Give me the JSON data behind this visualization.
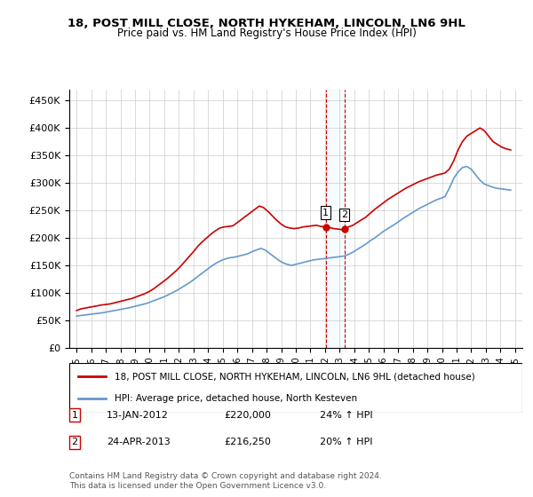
{
  "title": "18, POST MILL CLOSE, NORTH HYKEHAM, LINCOLN, LN6 9HL",
  "subtitle": "Price paid vs. HM Land Registry's House Price Index (HPI)",
  "legend_line1": "18, POST MILL CLOSE, NORTH HYKEHAM, LINCOLN, LN6 9HL (detached house)",
  "legend_line2": "HPI: Average price, detached house, North Kesteven",
  "annotation1_label": "1",
  "annotation1_date": "13-JAN-2012",
  "annotation1_price": "£220,000",
  "annotation1_hpi": "24% ↑ HPI",
  "annotation2_label": "2",
  "annotation2_date": "24-APR-2013",
  "annotation2_price": "£216,250",
  "annotation2_hpi": "20% ↑ HPI",
  "footer": "Contains HM Land Registry data © Crown copyright and database right 2024.\nThis data is licensed under the Open Government Licence v3.0.",
  "red_color": "#cc0000",
  "blue_color": "#6699cc",
  "vline_color": "#cc0000",
  "vline_x1": 2012.04,
  "vline_x2": 2013.32,
  "ylim": [
    0,
    470000
  ],
  "xlim_start": 1994.5,
  "xlim_end": 2025.5,
  "yticks": [
    0,
    50000,
    100000,
    150000,
    200000,
    250000,
    300000,
    350000,
    400000,
    450000
  ],
  "ytick_labels": [
    "£0",
    "£50K",
    "£100K",
    "£150K",
    "£200K",
    "£250K",
    "£300K",
    "£350K",
    "£400K",
    "£450K"
  ],
  "xticks": [
    1995,
    1996,
    1997,
    1998,
    1999,
    2000,
    2001,
    2002,
    2003,
    2004,
    2005,
    2006,
    2007,
    2008,
    2009,
    2010,
    2011,
    2012,
    2013,
    2014,
    2015,
    2016,
    2017,
    2018,
    2019,
    2020,
    2021,
    2022,
    2023,
    2024,
    2025
  ],
  "red_x": [
    1995.0,
    1995.1,
    1995.2,
    1995.3,
    1995.5,
    1995.7,
    1995.9,
    1996.1,
    1996.3,
    1996.5,
    1996.7,
    1997.0,
    1997.3,
    1997.6,
    1997.9,
    1998.2,
    1998.5,
    1998.8,
    1999.1,
    1999.4,
    1999.7,
    2000.0,
    2000.3,
    2000.6,
    2000.9,
    2001.2,
    2001.5,
    2001.8,
    2002.1,
    2002.4,
    2002.7,
    2003.0,
    2003.3,
    2003.6,
    2003.9,
    2004.2,
    2004.5,
    2004.8,
    2005.1,
    2005.4,
    2005.7,
    2006.0,
    2006.3,
    2006.6,
    2006.9,
    2007.2,
    2007.5,
    2007.8,
    2008.1,
    2008.4,
    2008.7,
    2009.0,
    2009.3,
    2009.6,
    2009.9,
    2010.2,
    2010.5,
    2010.8,
    2011.1,
    2011.4,
    2011.7,
    2012.04,
    2012.3,
    2012.6,
    2012.9,
    2013.2,
    2013.32,
    2013.6,
    2013.9,
    2014.2,
    2014.5,
    2014.8,
    2015.1,
    2015.4,
    2015.7,
    2016.0,
    2016.3,
    2016.6,
    2016.9,
    2017.2,
    2017.5,
    2017.8,
    2018.1,
    2018.4,
    2018.7,
    2019.0,
    2019.3,
    2019.6,
    2019.9,
    2020.2,
    2020.5,
    2020.8,
    2021.1,
    2021.4,
    2021.7,
    2022.0,
    2022.3,
    2022.6,
    2022.9,
    2023.2,
    2023.5,
    2023.8,
    2024.1,
    2024.4,
    2024.7
  ],
  "red_y": [
    68000,
    69000,
    70000,
    71000,
    72000,
    73000,
    74000,
    75000,
    76000,
    77000,
    78000,
    79000,
    80000,
    82000,
    84000,
    86000,
    88000,
    90000,
    93000,
    96000,
    99000,
    103000,
    108000,
    114000,
    120000,
    126000,
    133000,
    140000,
    148000,
    157000,
    166000,
    175000,
    185000,
    193000,
    200000,
    207000,
    213000,
    218000,
    220000,
    221000,
    222000,
    228000,
    234000,
    240000,
    246000,
    252000,
    258000,
    255000,
    248000,
    240000,
    232000,
    225000,
    220000,
    218000,
    217000,
    218000,
    220000,
    221000,
    222000,
    223000,
    221000,
    220000,
    219000,
    217000,
    216000,
    215000,
    216250,
    220000,
    223000,
    228000,
    233000,
    238000,
    245000,
    252000,
    258000,
    264000,
    270000,
    275000,
    280000,
    285000,
    290000,
    294000,
    298000,
    302000,
    305000,
    308000,
    311000,
    314000,
    316000,
    318000,
    325000,
    340000,
    360000,
    375000,
    385000,
    390000,
    395000,
    400000,
    395000,
    385000,
    375000,
    370000,
    365000,
    362000,
    360000
  ],
  "blue_x": [
    1995.0,
    1995.3,
    1995.6,
    1995.9,
    1996.2,
    1996.5,
    1996.8,
    1997.1,
    1997.4,
    1997.7,
    1998.0,
    1998.3,
    1998.6,
    1998.9,
    1999.2,
    1999.5,
    1999.8,
    2000.1,
    2000.4,
    2000.7,
    2001.0,
    2001.3,
    2001.6,
    2001.9,
    2002.2,
    2002.5,
    2002.8,
    2003.1,
    2003.4,
    2003.7,
    2004.0,
    2004.3,
    2004.6,
    2004.9,
    2005.2,
    2005.5,
    2005.8,
    2006.1,
    2006.4,
    2006.7,
    2007.0,
    2007.3,
    2007.6,
    2007.9,
    2008.2,
    2008.5,
    2008.8,
    2009.1,
    2009.4,
    2009.7,
    2010.0,
    2010.3,
    2010.6,
    2010.9,
    2011.2,
    2011.5,
    2011.8,
    2012.1,
    2012.4,
    2012.7,
    2013.0,
    2013.3,
    2013.6,
    2013.9,
    2014.2,
    2014.5,
    2014.8,
    2015.1,
    2015.4,
    2015.7,
    2016.0,
    2016.3,
    2016.6,
    2016.9,
    2017.2,
    2017.5,
    2017.8,
    2018.1,
    2018.4,
    2018.7,
    2019.0,
    2019.3,
    2019.6,
    2019.9,
    2020.2,
    2020.5,
    2020.8,
    2021.1,
    2021.4,
    2021.7,
    2022.0,
    2022.3,
    2022.6,
    2022.9,
    2023.2,
    2023.5,
    2023.8,
    2024.1,
    2024.4,
    2024.7
  ],
  "blue_y": [
    58000,
    59000,
    60000,
    61000,
    62000,
    63000,
    64000,
    65500,
    67000,
    68500,
    70000,
    71500,
    73000,
    75000,
    77000,
    79000,
    81000,
    84000,
    87000,
    90000,
    93000,
    97000,
    101000,
    105000,
    110000,
    115000,
    120000,
    126000,
    132000,
    138000,
    144000,
    150000,
    155000,
    159000,
    162000,
    164000,
    165000,
    167000,
    169000,
    171000,
    175000,
    178000,
    181000,
    178000,
    172000,
    166000,
    160000,
    155000,
    152000,
    150000,
    152000,
    154000,
    156000,
    158000,
    160000,
    161000,
    162000,
    163000,
    164000,
    165000,
    166000,
    167000,
    170000,
    174000,
    179000,
    184000,
    189000,
    195000,
    200000,
    206000,
    212000,
    217000,
    222000,
    227000,
    233000,
    238000,
    243000,
    248000,
    253000,
    257000,
    261000,
    265000,
    269000,
    272000,
    275000,
    290000,
    308000,
    320000,
    328000,
    330000,
    325000,
    315000,
    305000,
    298000,
    295000,
    292000,
    290000,
    289000,
    288000,
    287000
  ]
}
